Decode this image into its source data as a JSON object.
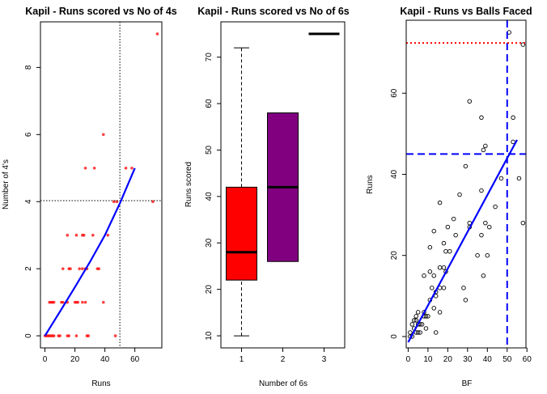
{
  "chart_data": [
    {
      "type": "scatter",
      "title": "Kapil - Runs scored vs No of 4s",
      "xlabel": "Runs",
      "ylabel": "Number of 4's",
      "xlim": [
        -3,
        78
      ],
      "ylim": [
        -0.36,
        9.36
      ],
      "xticks": [
        0,
        20,
        40,
        60
      ],
      "yticks": [
        0,
        2,
        4,
        6,
        8
      ],
      "point_color": "#ff0000",
      "points": [
        [
          75,
          9
        ],
        [
          39,
          6
        ],
        [
          27,
          5
        ],
        [
          33,
          5
        ],
        [
          54,
          5
        ],
        [
          58,
          5
        ],
        [
          46,
          4
        ],
        [
          48,
          4
        ],
        [
          72,
          4
        ],
        [
          15,
          3
        ],
        [
          21,
          3
        ],
        [
          25,
          3
        ],
        [
          26,
          3
        ],
        [
          32,
          3
        ],
        [
          42,
          3
        ],
        [
          12,
          2
        ],
        [
          16,
          2
        ],
        [
          17,
          2
        ],
        [
          23,
          2
        ],
        [
          25,
          2
        ],
        [
          27,
          2
        ],
        [
          28,
          2
        ],
        [
          35,
          2
        ],
        [
          36,
          2
        ],
        [
          3,
          1
        ],
        [
          4,
          1
        ],
        [
          5,
          1
        ],
        [
          6,
          1
        ],
        [
          11,
          1
        ],
        [
          12,
          1
        ],
        [
          15,
          1
        ],
        [
          20,
          1
        ],
        [
          21,
          1
        ],
        [
          22,
          1
        ],
        [
          25,
          1
        ],
        [
          27,
          1
        ],
        [
          39,
          1
        ],
        [
          0,
          0
        ],
        [
          1,
          0
        ],
        [
          2,
          0
        ],
        [
          3,
          0
        ],
        [
          4,
          0
        ],
        [
          5,
          0
        ],
        [
          6,
          0
        ],
        [
          9,
          0
        ],
        [
          10,
          0
        ],
        [
          15,
          0
        ],
        [
          16,
          0
        ],
        [
          21,
          0
        ],
        [
          28,
          0
        ],
        [
          29,
          0
        ],
        [
          47,
          0
        ]
      ],
      "fit_line": {
        "color": "#0000ff",
        "points": [
          [
            0,
            0
          ],
          [
            10,
            0.72
          ],
          [
            20,
            1.45
          ],
          [
            30,
            2.2
          ],
          [
            40,
            3.0
          ],
          [
            50,
            3.95
          ],
          [
            60,
            5
          ]
        ]
      },
      "reference_lines": {
        "vline": 50,
        "hline": 4.03,
        "style": "dotted",
        "color": "#000000"
      }
    },
    {
      "type": "boxplot",
      "title": "Kapil - Runs scored vs No of 6s",
      "xlabel": "Number of 6s",
      "ylabel": "Runs scored",
      "xlim": [
        0.5,
        3.5
      ],
      "ylim": [
        7.4,
        77.6
      ],
      "xticks": [
        1,
        2,
        3
      ],
      "yticks": [
        10,
        20,
        30,
        40,
        50,
        60,
        70
      ],
      "boxes": [
        {
          "category": "1",
          "min": 10,
          "q1": 22,
          "median": 28,
          "q3": 42,
          "max": 72,
          "color": "#ff0000"
        },
        {
          "category": "2",
          "min": 26,
          "q1": 26,
          "median": 42,
          "q3": 58,
          "max": 58,
          "color": "#800080"
        },
        {
          "category": "3",
          "min": 75,
          "q1": 75,
          "median": 75,
          "q3": 75,
          "max": 75,
          "color": "#000000"
        }
      ]
    },
    {
      "type": "scatter",
      "title": "Kapil - Runs vs Balls Faced",
      "xlabel": "BF",
      "ylabel": "Runs",
      "xlim": [
        -1,
        59.5
      ],
      "ylim": [
        -2.8,
        78
      ],
      "xticks": [
        0,
        10,
        20,
        30,
        40,
        50,
        60
      ],
      "yticks": [
        0,
        20,
        40,
        60
      ],
      "point_color": "#000000",
      "points": [
        [
          51,
          75
        ],
        [
          58,
          72
        ],
        [
          31,
          58
        ],
        [
          37,
          54
        ],
        [
          53,
          54
        ],
        [
          53,
          48
        ],
        [
          39,
          47
        ],
        [
          38,
          46
        ],
        [
          29,
          42
        ],
        [
          47,
          39
        ],
        [
          56,
          39
        ],
        [
          26,
          35
        ],
        [
          37,
          36
        ],
        [
          16,
          33
        ],
        [
          44,
          32
        ],
        [
          23,
          29
        ],
        [
          31,
          28
        ],
        [
          39,
          28
        ],
        [
          58,
          28
        ],
        [
          20,
          27
        ],
        [
          31,
          27
        ],
        [
          41,
          27
        ],
        [
          13,
          26
        ],
        [
          24,
          25
        ],
        [
          37,
          25
        ],
        [
          18,
          23
        ],
        [
          11,
          22
        ],
        [
          19,
          21
        ],
        [
          21,
          21
        ],
        [
          35,
          20
        ],
        [
          40,
          20
        ],
        [
          16,
          17
        ],
        [
          18,
          17
        ],
        [
          11,
          16
        ],
        [
          19,
          16
        ],
        [
          8,
          15
        ],
        [
          13,
          15
        ],
        [
          38,
          15
        ],
        [
          12,
          12
        ],
        [
          16,
          12
        ],
        [
          18,
          12
        ],
        [
          28,
          12
        ],
        [
          14,
          11
        ],
        [
          14,
          10
        ],
        [
          11,
          9
        ],
        [
          29,
          9
        ],
        [
          13,
          7
        ],
        [
          16,
          6
        ],
        [
          5,
          6
        ],
        [
          8,
          6
        ],
        [
          4,
          5
        ],
        [
          8,
          5
        ],
        [
          9,
          5
        ],
        [
          10,
          5
        ],
        [
          3,
          4
        ],
        [
          4,
          4
        ],
        [
          5,
          3
        ],
        [
          7,
          3
        ],
        [
          6,
          3
        ],
        [
          3,
          2
        ],
        [
          9,
          2
        ],
        [
          1,
          1
        ],
        [
          5,
          1
        ],
        [
          6,
          1
        ],
        [
          14,
          1
        ],
        [
          2,
          0
        ],
        [
          1,
          0
        ],
        [
          4,
          1
        ],
        [
          2,
          3
        ]
      ],
      "fit_line": {
        "color": "#0000ff",
        "points": [
          [
            0,
            -1.4
          ],
          [
            55,
            48.5
          ]
        ]
      },
      "reference_lines": {
        "vline": 50,
        "hline": 45,
        "style": "dashed",
        "color": "#0000ff",
        "red_hline": 72.4,
        "red_style": "dotted",
        "red_color": "#ff0000"
      }
    }
  ]
}
